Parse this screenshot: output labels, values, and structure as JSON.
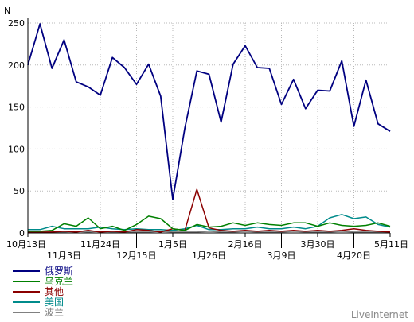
{
  "chart_data": {
    "type": "line",
    "ylabel": "N",
    "ylim": [
      0,
      250
    ],
    "yticks": [
      0,
      50,
      100,
      150,
      200,
      250
    ],
    "x_labels_upper": [
      "10月13日",
      "11月24日",
      "1月5日",
      "2月16日",
      "3月30日",
      "5月11日"
    ],
    "x_labels_lower": [
      "11月3日",
      "12月15日",
      "1月26日",
      "3月9日",
      "4月20日"
    ],
    "grid": true,
    "legend_position": "bottom-left",
    "watermark": "LiveInternet",
    "series": [
      {
        "name": "俄罗斯",
        "color": "#000080",
        "values": [
          200,
          249,
          196,
          230,
          180,
          174,
          164,
          209,
          197,
          177,
          201,
          163,
          40,
          125,
          193,
          189,
          132,
          201,
          223,
          197,
          196,
          153,
          183,
          148,
          170,
          169,
          205,
          127,
          182,
          130,
          121
        ]
      },
      {
        "name": "乌克兰",
        "color": "#008000",
        "values": [
          2,
          2,
          3,
          11,
          8,
          18,
          5,
          8,
          3,
          10,
          20,
          17,
          5,
          3,
          10,
          7,
          8,
          12,
          9,
          12,
          10,
          9,
          12,
          12,
          8,
          12,
          9,
          8,
          9,
          12,
          8
        ]
      },
      {
        "name": "其他",
        "color": "#8b0000",
        "values": [
          1,
          1,
          1,
          2,
          1,
          3,
          1,
          2,
          1,
          4,
          3,
          1,
          5,
          3,
          52,
          6,
          3,
          2,
          3,
          2,
          3,
          2,
          3,
          2,
          3,
          2,
          3,
          5,
          3,
          2,
          1
        ]
      },
      {
        "name": "美国",
        "color": "#008b8b",
        "values": [
          4,
          4,
          8,
          5,
          5,
          5,
          7,
          5,
          4,
          5,
          4,
          4,
          3,
          5,
          9,
          4,
          4,
          5,
          5,
          7,
          5,
          5,
          7,
          5,
          8,
          18,
          22,
          17,
          19,
          10,
          7
        ]
      },
      {
        "name": "波兰",
        "color": "#808080",
        "values": [
          1,
          1,
          1,
          1,
          2,
          1,
          2,
          1,
          1,
          1,
          1,
          2,
          1,
          1,
          1,
          2,
          1,
          1,
          2,
          1,
          1,
          1,
          2,
          1,
          1,
          1,
          2,
          1,
          1,
          1,
          1
        ]
      }
    ]
  }
}
